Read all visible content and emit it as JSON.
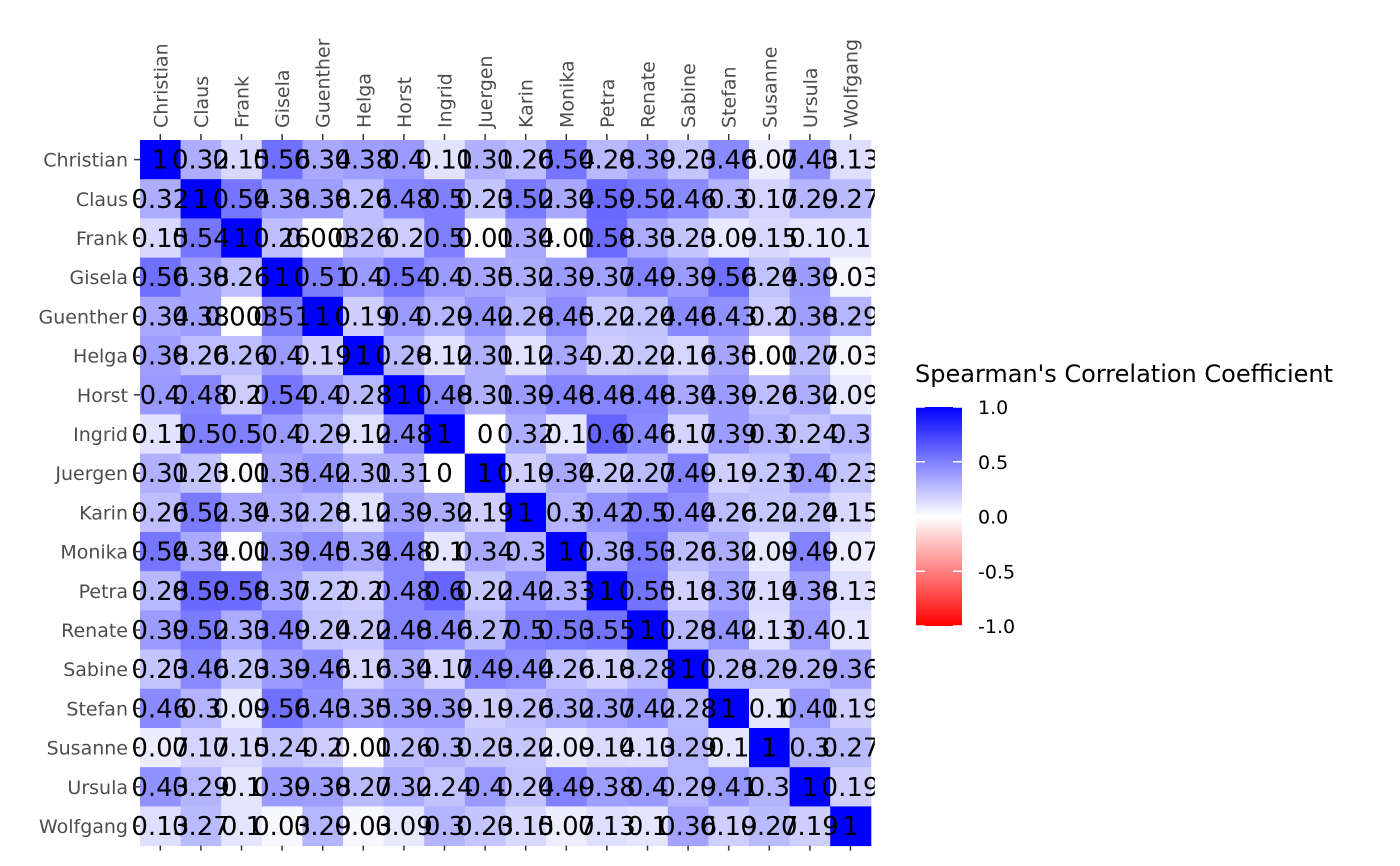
{
  "chart_data": {
    "type": "heatmap",
    "title": "",
    "xlabel": "",
    "ylabel": "",
    "x_categories": [
      "Christian",
      "Claus",
      "Frank",
      "Gisela",
      "Guenther",
      "Helga",
      "Horst",
      "Ingrid",
      "Juergen",
      "Karin",
      "Monika",
      "Petra",
      "Renate",
      "Sabine",
      "Stefan",
      "Susanne",
      "Ursula",
      "Wolfgang"
    ],
    "y_categories": [
      "Christian",
      "Claus",
      "Frank",
      "Gisela",
      "Guenther",
      "Helga",
      "Horst",
      "Ingrid",
      "Juergen",
      "Karin",
      "Monika",
      "Petra",
      "Renate",
      "Sabine",
      "Stefan",
      "Susanne",
      "Ursula",
      "Wolfgang"
    ],
    "cells": [
      [
        "1",
        "0.32",
        "0.15",
        "0.56",
        "0.34",
        "0.38",
        "0.4",
        "0.11",
        "0.31",
        "0.26",
        "0.54",
        "0.28",
        "0.39",
        "0.23",
        "0.46",
        "0.07",
        "0.43",
        "0.13"
      ],
      [
        "0.32",
        "1",
        "0.54",
        "0.38",
        "0.38",
        "0.26",
        "0.48",
        "0.5",
        "0.23",
        "0.52",
        "0.34",
        "0.59",
        "0.52",
        "0.46",
        "0.3",
        "0.17",
        "0.29",
        "0.27"
      ],
      [
        "0.15",
        "0.54",
        "1",
        "0.26",
        "0.003",
        "0.26",
        "0.2",
        "0.5",
        "0.01",
        "0.34",
        "0.01",
        "0.58",
        "0.33",
        "0.23",
        "0.09",
        "0.15",
        "0.1",
        "0.1"
      ],
      [
        "0.56",
        "0.38",
        "0.26",
        "1",
        "0.51",
        "0.4",
        "0.54",
        "0.4",
        "0.35",
        "0.32",
        "0.39",
        "0.37",
        "0.49",
        "0.39",
        "0.56",
        "0.24",
        "0.39",
        "0.03"
      ],
      [
        "0.34",
        "0.38",
        "0.003",
        "0.51",
        "1",
        "0.19",
        "0.4",
        "0.29",
        "0.42",
        "0.28",
        "0.45",
        "0.22",
        "0.24",
        "0.46",
        "0.43",
        "0.2",
        "0.38",
        "0.29"
      ],
      [
        "0.38",
        "0.26",
        "0.26",
        "0.4",
        "0.19",
        "1",
        "0.28",
        "0.12",
        "0.31",
        "0.12",
        "0.34",
        "0.2",
        "0.22",
        "0.16",
        "0.35",
        "0.01",
        "0.27",
        "0.03"
      ],
      [
        "0.4",
        "0.48",
        "0.2",
        "0.54",
        "0.4",
        "0.28",
        "1",
        "0.48",
        "0.31",
        "0.39",
        "0.48",
        "0.48",
        "0.48",
        "0.34",
        "0.39",
        "0.26",
        "0.32",
        "0.09"
      ],
      [
        "0.11",
        "0.5",
        "0.5",
        "0.4",
        "0.29",
        "0.12",
        "0.48",
        "1",
        "0",
        "0.32",
        "0.1",
        "0.6",
        "0.46",
        "0.17",
        "0.39",
        "0.3",
        "0.24",
        "0.3"
      ],
      [
        "0.31",
        "0.23",
        "0.01",
        "0.35",
        "0.42",
        "0.31",
        "0.31",
        "0",
        "1",
        "0.19",
        "0.34",
        "0.22",
        "0.27",
        "0.49",
        "0.19",
        "0.23",
        "0.4",
        "0.23"
      ],
      [
        "0.26",
        "0.52",
        "0.34",
        "0.32",
        "0.28",
        "0.12",
        "0.39",
        "0.32",
        "0.19",
        "1",
        "0.3",
        "0.42",
        "0.5",
        "0.44",
        "0.26",
        "0.22",
        "0.24",
        "0.15"
      ],
      [
        "0.54",
        "0.34",
        "0.01",
        "0.39",
        "0.45",
        "0.34",
        "0.48",
        "0.1",
        "0.34",
        "0.3",
        "1",
        "0.33",
        "0.53",
        "0.26",
        "0.32",
        "0.09",
        "0.49",
        "0.07"
      ],
      [
        "0.28",
        "0.59",
        "0.58",
        "0.37",
        "0.22",
        "0.2",
        "0.48",
        "0.6",
        "0.22",
        "0.42",
        "0.33",
        "1",
        "0.55",
        "0.18",
        "0.37",
        "0.14",
        "0.38",
        "0.13"
      ],
      [
        "0.39",
        "0.52",
        "0.33",
        "0.49",
        "0.24",
        "0.22",
        "0.48",
        "0.46",
        "0.27",
        "0.5",
        "0.53",
        "0.55",
        "1",
        "0.28",
        "0.42",
        "0.13",
        "0.4",
        "0.1"
      ],
      [
        "0.23",
        "0.46",
        "0.23",
        "0.39",
        "0.46",
        "0.16",
        "0.34",
        "0.17",
        "0.49",
        "0.44",
        "0.26",
        "0.18",
        "0.28",
        "1",
        "0.28",
        "0.29",
        "0.29",
        "0.36"
      ],
      [
        "0.46",
        "0.3",
        "0.09",
        "0.56",
        "0.43",
        "0.35",
        "0.39",
        "0.39",
        "0.19",
        "0.26",
        "0.32",
        "0.37",
        "0.42",
        "0.28",
        "1",
        "0.1",
        "0.41",
        "0.19"
      ],
      [
        "0.07",
        "0.17",
        "0.15",
        "0.24",
        "0.2",
        "0.01",
        "0.26",
        "0.3",
        "0.23",
        "0.22",
        "0.09",
        "0.14",
        "0.13",
        "0.29",
        "0.1",
        "1",
        "0.3",
        "0.27"
      ],
      [
        "0.43",
        "0.29",
        "0.1",
        "0.39",
        "0.38",
        "0.27",
        "0.32",
        "0.24",
        "0.4",
        "0.24",
        "0.49",
        "0.38",
        "0.4",
        "0.29",
        "0.41",
        "0.3",
        "1",
        "0.19"
      ],
      [
        "0.13",
        "0.27",
        "0.1",
        "0.03",
        "0.29",
        "0.03",
        "0.09",
        "0.3",
        "0.23",
        "0.15",
        "0.07",
        "0.13",
        "0.1",
        "0.36",
        "0.19",
        "0.27",
        "0.19",
        "1"
      ]
    ],
    "color_scale": {
      "low": "#ff0000",
      "mid": "#ffffff",
      "high": "#0000ff",
      "limits": [
        -1.0,
        1.0
      ]
    },
    "legend": {
      "title": "Spearman's Correlation Coefficient",
      "ticks": [
        "1.0",
        "0.5",
        "0.0",
        "-0.5",
        "-1.0"
      ],
      "tick_values": [
        1.0,
        0.5,
        0.0,
        -0.5,
        -1.0
      ],
      "placement": "right"
    },
    "panel_background": "#ebebeb",
    "grid": true
  }
}
